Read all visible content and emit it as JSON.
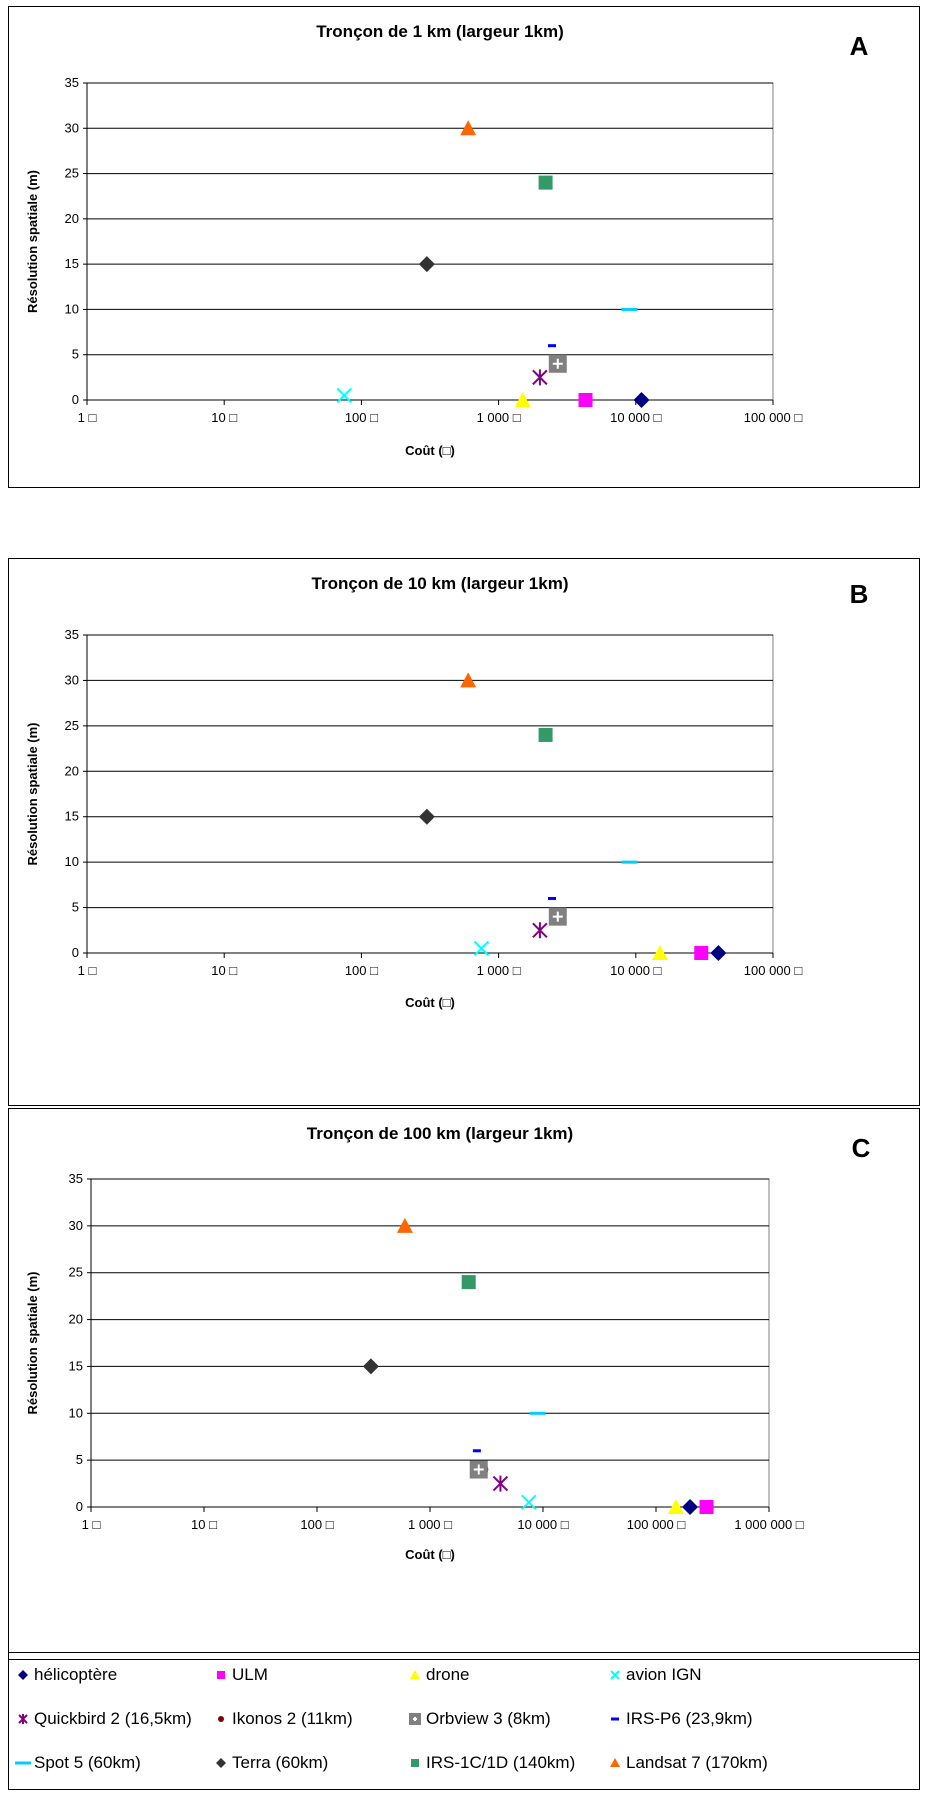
{
  "chart_data": [
    {
      "type": "scatter",
      "panel_letter": "A",
      "title": "Tronçon de 1 km (largeur 1km)",
      "xlabel": "Coût (□)",
      "ylabel": "Résolution spatiale (m)",
      "x_scale": "log",
      "xlim": [
        1,
        100000
      ],
      "ylim": [
        0,
        35
      ],
      "x_ticks": [
        "1 □",
        "10 □",
        "100 □",
        "1 000 □",
        "10 000 □",
        "100 000 □"
      ],
      "y_ticks": [
        "0",
        "5",
        "10",
        "15",
        "20",
        "25",
        "30",
        "35"
      ],
      "grid": "horizontal",
      "series": [
        {
          "name": "hélicoptère",
          "x": 11000,
          "y": 0
        },
        {
          "name": "ULM",
          "x": 4300,
          "y": 0
        },
        {
          "name": "drone",
          "x": 1500,
          "y": 0
        },
        {
          "name": "avion IGN",
          "x": 75,
          "y": 0.5
        },
        {
          "name": "Quickbird 2 (16,5km)",
          "x": 2000,
          "y": 2.5
        },
        {
          "name": "Ikonos 2 (11km)",
          "x": 2800,
          "y": 4
        },
        {
          "name": "Orbview 3 (8km)",
          "x": 2700,
          "y": 4
        },
        {
          "name": "IRS-P6 (23,9km)",
          "x": 2450,
          "y": 6
        },
        {
          "name": "Spot 5 (60km)",
          "x": 9000,
          "y": 10
        },
        {
          "name": "Terra (60km)",
          "x": 300,
          "y": 15
        },
        {
          "name": "IRS-1C/1D (140km)",
          "x": 2200,
          "y": 24
        },
        {
          "name": "Landsat 7 (170km)",
          "x": 600,
          "y": 30
        }
      ]
    },
    {
      "type": "scatter",
      "panel_letter": "B",
      "title": "Tronçon de 10 km (largeur 1km)",
      "xlabel": "Coût (□)",
      "ylabel": "Résolution spatiale (m)",
      "x_scale": "log",
      "xlim": [
        1,
        100000
      ],
      "ylim": [
        0,
        35
      ],
      "x_ticks": [
        "1 □",
        "10 □",
        "100 □",
        "1 000 □",
        "10 000 □",
        "100 000 □"
      ],
      "y_ticks": [
        "0",
        "5",
        "10",
        "15",
        "20",
        "25",
        "30",
        "35"
      ],
      "grid": "horizontal",
      "series": [
        {
          "name": "hélicoptère",
          "x": 40000,
          "y": 0
        },
        {
          "name": "ULM",
          "x": 30000,
          "y": 0
        },
        {
          "name": "drone",
          "x": 15000,
          "y": 0
        },
        {
          "name": "avion IGN",
          "x": 750,
          "y": 0.5
        },
        {
          "name": "Quickbird 2 (16,5km)",
          "x": 2000,
          "y": 2.5
        },
        {
          "name": "Ikonos 2 (11km)",
          "x": 2800,
          "y": 4
        },
        {
          "name": "Orbview 3 (8km)",
          "x": 2700,
          "y": 4
        },
        {
          "name": "IRS-P6 (23,9km)",
          "x": 2450,
          "y": 6
        },
        {
          "name": "Spot 5 (60km)",
          "x": 9000,
          "y": 10
        },
        {
          "name": "Terra (60km)",
          "x": 300,
          "y": 15
        },
        {
          "name": "IRS-1C/1D (140km)",
          "x": 2200,
          "y": 24
        },
        {
          "name": "Landsat 7 (170km)",
          "x": 600,
          "y": 30
        }
      ]
    },
    {
      "type": "scatter",
      "panel_letter": "C",
      "title": "Tronçon de 100 km (largeur 1km)",
      "xlabel": "Coût (□)",
      "ylabel": "Résolution spatiale (m)",
      "x_scale": "log",
      "xlim": [
        1,
        1000000
      ],
      "ylim": [
        0,
        35
      ],
      "x_ticks": [
        "1 □",
        "10 □",
        "100 □",
        "1 000 □",
        "10 000 □",
        "100 000 □",
        "1 000 000 □"
      ],
      "y_ticks": [
        "0",
        "5",
        "10",
        "15",
        "20",
        "25",
        "30",
        "35"
      ],
      "grid": "horizontal",
      "series": [
        {
          "name": "hélicoptère",
          "x": 200000,
          "y": 0
        },
        {
          "name": "ULM",
          "x": 280000,
          "y": 0
        },
        {
          "name": "drone",
          "x": 150000,
          "y": 0
        },
        {
          "name": "avion IGN",
          "x": 7500,
          "y": 0.5
        },
        {
          "name": "Quickbird 2 (16,5km)",
          "x": 4200,
          "y": 2.5
        },
        {
          "name": "Ikonos 2 (11km)",
          "x": 2900,
          "y": 4
        },
        {
          "name": "Orbview 3 (8km)",
          "x": 2700,
          "y": 4
        },
        {
          "name": "IRS-P6 (23,9km)",
          "x": 2600,
          "y": 6
        },
        {
          "name": "Spot 5 (60km)",
          "x": 9000,
          "y": 10
        },
        {
          "name": "Terra (60km)",
          "x": 300,
          "y": 15
        },
        {
          "name": "IRS-1C/1D (140km)",
          "x": 2200,
          "y": 24
        },
        {
          "name": "Landsat 7 (170km)",
          "x": 600,
          "y": 30
        }
      ]
    }
  ],
  "legend": {
    "placement": "bottom",
    "items": [
      {
        "name": "hélicoptère",
        "marker": "diamond",
        "color": "#000080"
      },
      {
        "name": "ULM",
        "marker": "square",
        "color": "#ff00ff"
      },
      {
        "name": "drone",
        "marker": "triangle",
        "color": "#ffff00"
      },
      {
        "name": "avion IGN",
        "marker": "x",
        "color": "#00ffff"
      },
      {
        "name": "Quickbird 2 (16,5km)",
        "marker": "star",
        "color": "#800080"
      },
      {
        "name": "Ikonos 2 (11km)",
        "marker": "circle",
        "color": "#800000"
      },
      {
        "name": "Orbview 3 (8km)",
        "marker": "plus-square",
        "color": "#808080"
      },
      {
        "name": "IRS-P6 (23,9km)",
        "marker": "dash",
        "color": "#0000ff"
      },
      {
        "name": "Spot 5 (60km)",
        "marker": "long-dash",
        "color": "#00ccff"
      },
      {
        "name": "Terra (60km)",
        "marker": "diamond",
        "color": "#333333"
      },
      {
        "name": "IRS-1C/1D (140km)",
        "marker": "square",
        "color": "#339966"
      },
      {
        "name": "Landsat 7 (170km)",
        "marker": "triangle",
        "color": "#ff6600"
      }
    ]
  }
}
